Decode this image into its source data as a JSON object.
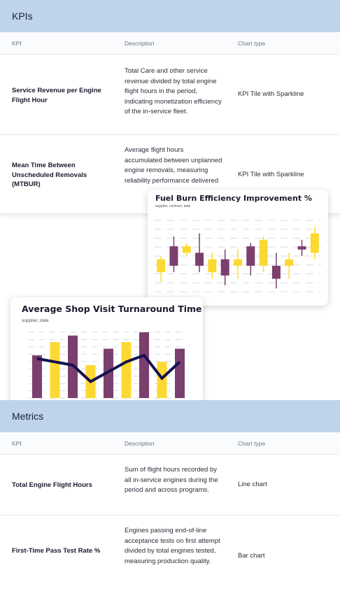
{
  "kpis_section": {
    "title": "KPIs",
    "headers": {
      "kpi": "KPI",
      "description": "Description",
      "chart_type": "Chart type"
    },
    "rows": [
      {
        "kpi": "Service Revenue per Engine Flight Hour",
        "description": "Total Care and other service revenue divided by total engine flight hours in the period, indicating monetization efficiency of the in-service fleet.",
        "chart_type": "KPI Tile with Sparkline"
      },
      {
        "kpi": "Mean Time Between Unscheduled Removals (MTBUR)",
        "description": "Average flight hours accumulated between unplanned engine removals, measuring reliability performance delivered",
        "chart_type": "KPI Tile with Sparkline"
      }
    ]
  },
  "metrics_section": {
    "title": "Metrics",
    "headers": {
      "kpi": "KPI",
      "description": "Description",
      "chart_type": "Chart type"
    },
    "rows": [
      {
        "kpi": "Total Engine Flight Hours",
        "description": "Sum of flight hours recorded by all in-service engines during the period and across programs.",
        "chart_type": "Line chart"
      },
      {
        "kpi": "First-Time Pass Test Rate %",
        "description": "Engines passing end-of-line acceptance tests on first attempt divided by total engines tested, measuring production quality.",
        "chart_type": "Bar chart"
      }
    ]
  },
  "fuel_card": {
    "title": "Fuel Burn Efficiency Improvement %",
    "subtitle": "supplier, contract, date"
  },
  "shop_card": {
    "title": "Average Shop Visit Turnaround Time",
    "subtitle": "supplier, date"
  },
  "colors": {
    "purple": "#7b3f6e",
    "yellow": "#fcd932",
    "navy": "#16114f",
    "header_bg": "#bfd3ea"
  },
  "chart_data": [
    {
      "type": "candlestick",
      "title": "Fuel Burn Efficiency Improvement %",
      "candles": [
        {
          "open": 3.0,
          "close": 5.0,
          "low": 1.5,
          "high": 5.5,
          "color": "yellow"
        },
        {
          "open": 4.0,
          "close": 7.0,
          "low": 3.0,
          "high": 8.5,
          "color": "purple"
        },
        {
          "open": 6.0,
          "close": 7.0,
          "low": 5.5,
          "high": 7.5,
          "color": "yellow"
        },
        {
          "open": 6.0,
          "close": 4.0,
          "low": 3.0,
          "high": 9.0,
          "color": "purple"
        },
        {
          "open": 3.0,
          "close": 5.0,
          "low": 2.0,
          "high": 6.0,
          "color": "yellow"
        },
        {
          "open": 5.0,
          "close": 2.5,
          "low": 1.0,
          "high": 6.5,
          "color": "purple"
        },
        {
          "open": 4.0,
          "close": 5.0,
          "low": 2.0,
          "high": 6.5,
          "color": "yellow"
        },
        {
          "open": 4.0,
          "close": 7.0,
          "low": 2.5,
          "high": 7.5,
          "color": "purple"
        },
        {
          "open": 4.0,
          "close": 8.0,
          "low": 3.0,
          "high": 8.5,
          "color": "yellow"
        },
        {
          "open": 4.0,
          "close": 2.0,
          "low": 0.5,
          "high": 6.0,
          "color": "purple"
        },
        {
          "open": 4.0,
          "close": 5.0,
          "low": 2.0,
          "high": 6.0,
          "color": "yellow"
        },
        {
          "open": 7.0,
          "close": 6.5,
          "low": 5.5,
          "high": 8.0,
          "color": "purple"
        },
        {
          "open": 6.0,
          "close": 9.0,
          "low": 5.0,
          "high": 10.0,
          "color": "yellow"
        }
      ],
      "ylim": [
        0,
        11
      ]
    },
    {
      "type": "bar",
      "title": "Average Shop Visit Turnaround Time",
      "values": [
        6.5,
        8.5,
        9.5,
        5.0,
        7.5,
        8.5,
        10.0,
        5.5,
        7.5
      ],
      "colors": [
        "purple",
        "yellow",
        "purple",
        "yellow",
        "purple",
        "yellow",
        "purple",
        "yellow",
        "purple"
      ],
      "line": [
        6.0,
        5.5,
        5.0,
        2.5,
        4.0,
        5.5,
        6.5,
        3.0,
        5.5
      ],
      "ylim": [
        0,
        10
      ]
    }
  ]
}
